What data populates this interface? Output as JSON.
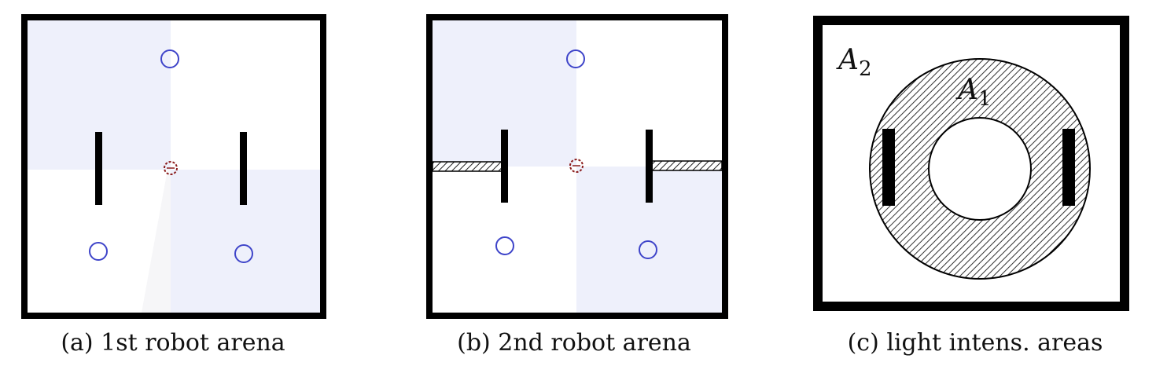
{
  "colors": {
    "wall": "#000000",
    "goal_circle": "#3e44c9",
    "start_marker": "#8b1d1d",
    "shaded_zone": "#eef0fb",
    "hatch": "#222222"
  },
  "panels": [
    {
      "caption": "(a) 1st robot arena"
    },
    {
      "caption": "(b) 2nd robot arena"
    },
    {
      "caption": "(c) light intens. areas",
      "area_labels": {
        "outer": "A",
        "outer_sub": "2",
        "inner": "A",
        "inner_sub": "1"
      }
    }
  ]
}
